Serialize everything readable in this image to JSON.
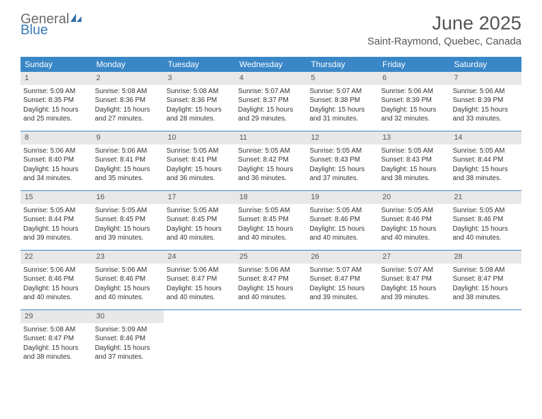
{
  "brand": {
    "general": "General",
    "blue": "Blue"
  },
  "header": {
    "month_title": "June 2025",
    "location": "Saint-Raymond, Quebec, Canada"
  },
  "colors": {
    "header_bar": "#3a87c7",
    "header_text": "#ffffff",
    "daynum_bg": "#e8e8e8",
    "rule": "#3a87c7",
    "body_text": "#333333"
  },
  "weekdays": [
    "Sunday",
    "Monday",
    "Tuesday",
    "Wednesday",
    "Thursday",
    "Friday",
    "Saturday"
  ],
  "days": [
    {
      "n": "1",
      "sunrise": "5:09 AM",
      "sunset": "8:35 PM",
      "daylight": "15 hours and 25 minutes."
    },
    {
      "n": "2",
      "sunrise": "5:08 AM",
      "sunset": "8:36 PM",
      "daylight": "15 hours and 27 minutes."
    },
    {
      "n": "3",
      "sunrise": "5:08 AM",
      "sunset": "8:36 PM",
      "daylight": "15 hours and 28 minutes."
    },
    {
      "n": "4",
      "sunrise": "5:07 AM",
      "sunset": "8:37 PM",
      "daylight": "15 hours and 29 minutes."
    },
    {
      "n": "5",
      "sunrise": "5:07 AM",
      "sunset": "8:38 PM",
      "daylight": "15 hours and 31 minutes."
    },
    {
      "n": "6",
      "sunrise": "5:06 AM",
      "sunset": "8:39 PM",
      "daylight": "15 hours and 32 minutes."
    },
    {
      "n": "7",
      "sunrise": "5:06 AM",
      "sunset": "8:39 PM",
      "daylight": "15 hours and 33 minutes."
    },
    {
      "n": "8",
      "sunrise": "5:06 AM",
      "sunset": "8:40 PM",
      "daylight": "15 hours and 34 minutes."
    },
    {
      "n": "9",
      "sunrise": "5:06 AM",
      "sunset": "8:41 PM",
      "daylight": "15 hours and 35 minutes."
    },
    {
      "n": "10",
      "sunrise": "5:05 AM",
      "sunset": "8:41 PM",
      "daylight": "15 hours and 36 minutes."
    },
    {
      "n": "11",
      "sunrise": "5:05 AM",
      "sunset": "8:42 PM",
      "daylight": "15 hours and 36 minutes."
    },
    {
      "n": "12",
      "sunrise": "5:05 AM",
      "sunset": "8:43 PM",
      "daylight": "15 hours and 37 minutes."
    },
    {
      "n": "13",
      "sunrise": "5:05 AM",
      "sunset": "8:43 PM",
      "daylight": "15 hours and 38 minutes."
    },
    {
      "n": "14",
      "sunrise": "5:05 AM",
      "sunset": "8:44 PM",
      "daylight": "15 hours and 38 minutes."
    },
    {
      "n": "15",
      "sunrise": "5:05 AM",
      "sunset": "8:44 PM",
      "daylight": "15 hours and 39 minutes."
    },
    {
      "n": "16",
      "sunrise": "5:05 AM",
      "sunset": "8:45 PM",
      "daylight": "15 hours and 39 minutes."
    },
    {
      "n": "17",
      "sunrise": "5:05 AM",
      "sunset": "8:45 PM",
      "daylight": "15 hours and 40 minutes."
    },
    {
      "n": "18",
      "sunrise": "5:05 AM",
      "sunset": "8:45 PM",
      "daylight": "15 hours and 40 minutes."
    },
    {
      "n": "19",
      "sunrise": "5:05 AM",
      "sunset": "8:46 PM",
      "daylight": "15 hours and 40 minutes."
    },
    {
      "n": "20",
      "sunrise": "5:05 AM",
      "sunset": "8:46 PM",
      "daylight": "15 hours and 40 minutes."
    },
    {
      "n": "21",
      "sunrise": "5:05 AM",
      "sunset": "8:46 PM",
      "daylight": "15 hours and 40 minutes."
    },
    {
      "n": "22",
      "sunrise": "5:06 AM",
      "sunset": "8:46 PM",
      "daylight": "15 hours and 40 minutes."
    },
    {
      "n": "23",
      "sunrise": "5:06 AM",
      "sunset": "8:46 PM",
      "daylight": "15 hours and 40 minutes."
    },
    {
      "n": "24",
      "sunrise": "5:06 AM",
      "sunset": "8:47 PM",
      "daylight": "15 hours and 40 minutes."
    },
    {
      "n": "25",
      "sunrise": "5:06 AM",
      "sunset": "8:47 PM",
      "daylight": "15 hours and 40 minutes."
    },
    {
      "n": "26",
      "sunrise": "5:07 AM",
      "sunset": "8:47 PM",
      "daylight": "15 hours and 39 minutes."
    },
    {
      "n": "27",
      "sunrise": "5:07 AM",
      "sunset": "8:47 PM",
      "daylight": "15 hours and 39 minutes."
    },
    {
      "n": "28",
      "sunrise": "5:08 AM",
      "sunset": "8:47 PM",
      "daylight": "15 hours and 38 minutes."
    },
    {
      "n": "29",
      "sunrise": "5:08 AM",
      "sunset": "8:47 PM",
      "daylight": "15 hours and 38 minutes."
    },
    {
      "n": "30",
      "sunrise": "5:09 AM",
      "sunset": "8:46 PM",
      "daylight": "15 hours and 37 minutes."
    }
  ],
  "labels": {
    "sunrise": "Sunrise:",
    "sunset": "Sunset:",
    "daylight": "Daylight:"
  },
  "layout": {
    "start_offset": 0,
    "total_cells": 35
  }
}
